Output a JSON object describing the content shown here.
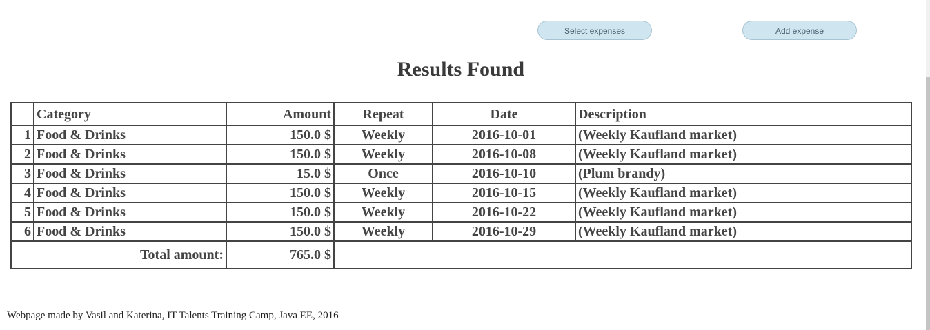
{
  "toolbar": {
    "select_label": "Select expenses",
    "add_label": "Add expense"
  },
  "heading": "Results Found",
  "table": {
    "headers": [
      "",
      "Category",
      "Amount",
      "Repeat",
      "Date",
      "Description"
    ],
    "rows": [
      {
        "index": "1",
        "category": "Food & Drinks",
        "amount": "150.0 $",
        "repeat": "Weekly",
        "date": "2016-10-01",
        "description": "(Weekly Kaufland market)"
      },
      {
        "index": "2",
        "category": "Food & Drinks",
        "amount": "150.0 $",
        "repeat": "Weekly",
        "date": "2016-10-08",
        "description": "(Weekly Kaufland market)"
      },
      {
        "index": "3",
        "category": "Food & Drinks",
        "amount": "15.0 $",
        "repeat": "Once",
        "date": "2016-10-10",
        "description": "(Plum brandy)"
      },
      {
        "index": "4",
        "category": "Food & Drinks",
        "amount": "150.0 $",
        "repeat": "Weekly",
        "date": "2016-10-15",
        "description": "(Weekly Kaufland market)"
      },
      {
        "index": "5",
        "category": "Food & Drinks",
        "amount": "150.0 $",
        "repeat": "Weekly",
        "date": "2016-10-22",
        "description": "(Weekly Kaufland market)"
      },
      {
        "index": "6",
        "category": "Food & Drinks",
        "amount": "150.0 $",
        "repeat": "Weekly",
        "date": "2016-10-29",
        "description": "(Weekly Kaufland market)"
      }
    ],
    "total_label": "Total amount:",
    "total_value": "765.0  $"
  },
  "footer": "Webpage made by Vasil and Katerina, IT Talents Training Camp, Java EE, 2016",
  "colors": {
    "button_bg": "#cfe5ef",
    "button_border": "#a8c4d3",
    "text": "#444444"
  }
}
